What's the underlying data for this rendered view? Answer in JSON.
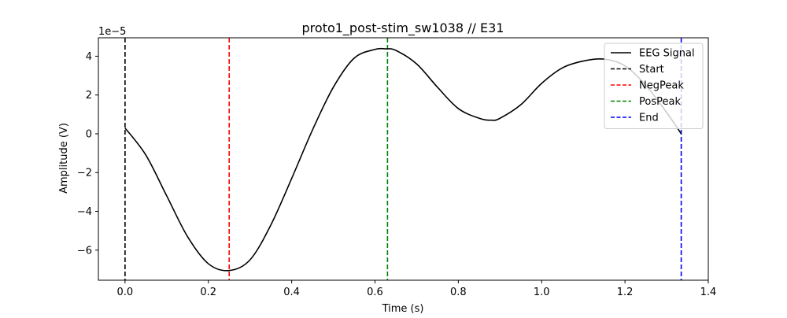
{
  "chart_data": {
    "type": "line",
    "title": "proto1_post-stim_sw1038 // E31",
    "xlabel": "Time (s)",
    "ylabel": "Amplitude (V)",
    "y_scale_label": "1e−5",
    "xlim": [
      -0.064,
      1.4
    ],
    "ylim": [
      -7.55,
      4.95
    ],
    "x_ticks": [
      0.0,
      0.2,
      0.4,
      0.6,
      0.8,
      1.0,
      1.2,
      1.4
    ],
    "x_tick_labels": [
      "0.0",
      "0.2",
      "0.4",
      "0.6",
      "0.8",
      "1.0",
      "1.2",
      "1.4"
    ],
    "y_ticks": [
      -6,
      -4,
      -2,
      0,
      2,
      4
    ],
    "y_tick_labels": [
      "−6",
      "−4",
      "−2",
      "0",
      "2",
      "4"
    ],
    "grid": false,
    "legend_position": "top-right",
    "series": [
      {
        "name": "EEG Signal",
        "color": "#000000",
        "style": "solid",
        "x": [
          0.0,
          0.05,
          0.1,
          0.15,
          0.2,
          0.25,
          0.3,
          0.35,
          0.4,
          0.45,
          0.5,
          0.55,
          0.6,
          0.625,
          0.65,
          0.7,
          0.75,
          0.8,
          0.85,
          0.88,
          0.9,
          0.95,
          1.0,
          1.05,
          1.1,
          1.15,
          1.2,
          1.25,
          1.3,
          1.335
        ],
        "y": [
          0.3,
          -1.1,
          -3.2,
          -5.3,
          -6.7,
          -7.05,
          -6.5,
          -4.7,
          -2.3,
          0.2,
          2.4,
          3.9,
          4.35,
          4.38,
          4.3,
          3.6,
          2.4,
          1.3,
          0.8,
          0.7,
          0.8,
          1.5,
          2.6,
          3.4,
          3.75,
          3.85,
          3.5,
          2.5,
          1.1,
          0.0
        ]
      }
    ],
    "markers": [
      {
        "name": "Start",
        "x": 0.0,
        "color": "#000000"
      },
      {
        "name": "NegPeak",
        "x": 0.25,
        "color": "#ff0000"
      },
      {
        "name": "PosPeak",
        "x": 0.63,
        "color": "#008000"
      },
      {
        "name": "End",
        "x": 1.335,
        "color": "#0000ff"
      }
    ]
  }
}
